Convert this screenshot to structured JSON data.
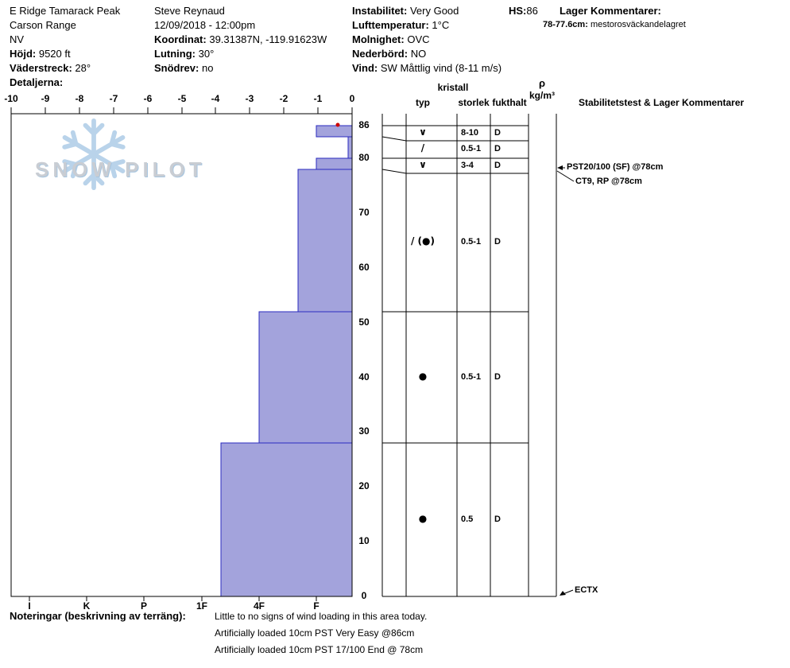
{
  "header": {
    "location": {
      "name": "E Ridge Tamarack Peak",
      "range": "Carson Range",
      "state": "NV",
      "elevation_label": "Höjd:",
      "elevation": "9520 ft",
      "aspect_label": "Väderstreck:",
      "aspect": "28°",
      "details_label": "Detaljerna:"
    },
    "observer": {
      "name": "Steve Reynaud",
      "datetime": "12/09/2018 - 12:00pm",
      "coords_label": "Koordinat:",
      "coords": "39.31387N, -119.91623W",
      "slope_label": "Lutning:",
      "slope": "30°",
      "drift_label": "Snödrev:",
      "drift": "no"
    },
    "conditions": {
      "stability_label": "Instabilitet:",
      "stability": "Very Good",
      "airtemp_label": "Lufttemperatur:",
      "airtemp": "1°C",
      "sky_label": "Molnighet:",
      "sky": "OVC",
      "precip_label": "Nederbörd:",
      "precip": "NO",
      "wind_label": "Vind:",
      "wind": "SW Måttlig vind (8-11 m/s)"
    },
    "hs_label": "HS:",
    "hs_value": "86",
    "layer_comments_label": "Lager Kommentarer:",
    "layer_comment_range": "78-77.6cm:",
    "layer_comment_text": "mestorosväckandelagret"
  },
  "watermark": {
    "brand": "SNOW PILOT"
  },
  "table_headers": {
    "kristall": "kristall",
    "typ": "typ",
    "storlek": "storlek",
    "fukthalt": "fukthalt",
    "rho": "ρ",
    "rho_unit": "kg/m³",
    "stability": "Stabilitetstest & Lager Kommentarer"
  },
  "annotations": [
    {
      "text": "PST20/100 (SF) @78cm",
      "depth_cm": 78,
      "style": "arrow-left"
    },
    {
      "text": "CT9, RP @78cm",
      "depth_cm": 78,
      "style": "diagonal-down"
    },
    {
      "text": "ECTX",
      "depth_cm": 0,
      "style": "diagonal-up"
    }
  ],
  "notes": {
    "label": "Noteringar (beskrivning av terräng):",
    "lines": [
      "Little to no signs of wind loading in this area today.",
      "Artificially loaded 10cm PST Very Easy @86cm",
      "Artificially loaded 10cm PST 17/100 End @ 78cm"
    ]
  },
  "chart_data": {
    "type": "snow-profile",
    "temp_axis": {
      "min": -10,
      "max": 0,
      "ticks": [
        -10,
        -9,
        -8,
        -7,
        -6,
        -5,
        -4,
        -3,
        -2,
        -1,
        0
      ]
    },
    "depth_axis": {
      "min": 0,
      "max": 88,
      "unit": "cm",
      "ticks": [
        86,
        80,
        70,
        60,
        50,
        40,
        30,
        20,
        10,
        0
      ]
    },
    "hardness_axis": {
      "labels": [
        "I",
        "K",
        "P",
        "1F",
        "4F",
        "F"
      ]
    },
    "surface_temp_point": {
      "depth_cm": 86,
      "temp_c": -0.42
    },
    "hs_cm": 86,
    "layers": [
      {
        "top_cm": 86,
        "bottom_cm": 84,
        "hardness": "F",
        "hardness_index": 1.0,
        "grain_type": "∨",
        "grain_name": "surface-hoar",
        "grain_size_mm": "8-10",
        "moisture": "D"
      },
      {
        "top_cm": 84,
        "bottom_cm": 80,
        "hardness": "F-",
        "hardness_index": 0.45,
        "grain_type": "/",
        "grain_name": "decomposing-fragments",
        "grain_size_mm": "0.5-1",
        "moisture": "D"
      },
      {
        "top_cm": 80,
        "bottom_cm": 78,
        "hardness": "F",
        "hardness_index": 1.0,
        "grain_type": "∨",
        "grain_name": "surface-hoar",
        "grain_size_mm": "3-4",
        "moisture": "D"
      },
      {
        "top_cm": 78,
        "bottom_cm": 52,
        "hardness": "F+",
        "hardness_index": 1.32,
        "grain_type": "/ (●)",
        "grain_name": "decomposing-with-rounds",
        "grain_size_mm": "0.5-1",
        "moisture": "D"
      },
      {
        "top_cm": 52,
        "bottom_cm": 28,
        "hardness": "4F",
        "hardness_index": 2.0,
        "grain_type": "●",
        "grain_name": "rounded-grains",
        "grain_size_mm": "0.5-1",
        "moisture": "D"
      },
      {
        "top_cm": 28,
        "bottom_cm": 0,
        "hardness": "1F-",
        "hardness_index": 2.66,
        "grain_type": "●",
        "grain_name": "rounded-grains",
        "grain_size_mm": "0.5",
        "moisture": "D"
      }
    ],
    "colors": {
      "bar_fill": "#a3a3dc",
      "bar_border": "#2b2bbf",
      "temp_point": "#cc0000"
    }
  }
}
